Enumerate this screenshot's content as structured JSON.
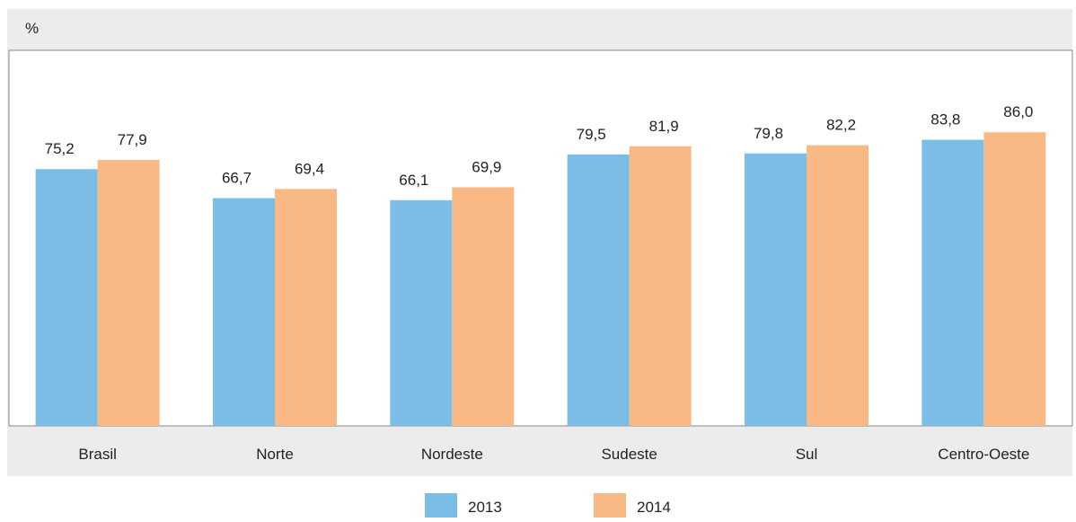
{
  "chart_data": {
    "type": "bar",
    "unit_label": "%",
    "categories": [
      "Brasil",
      "Norte",
      "Nordeste",
      "Sudeste",
      "Sul",
      "Centro-Oeste"
    ],
    "series": [
      {
        "name": "2013",
        "values": [
          75.2,
          66.7,
          66.1,
          79.5,
          79.8,
          83.8
        ],
        "labels": [
          "75,2",
          "66,7",
          "66,1",
          "79,5",
          "79,8",
          "83,8"
        ]
      },
      {
        "name": "2014",
        "values": [
          77.9,
          69.4,
          69.9,
          81.9,
          82.2,
          86.0
        ],
        "labels": [
          "77,9",
          "69,4",
          "69,9",
          "81,9",
          "82,2",
          "86,0"
        ]
      }
    ],
    "ylim": [
      0,
      100
    ],
    "grid": false,
    "legend_position": "bottom-center"
  },
  "colors": {
    "series_2013": "#7bbde6",
    "series_2014": "#f8b985",
    "panel_background": "#ececec",
    "plot_background": "#ffffff",
    "plot_border": "#8a8a8a",
    "text": "#222222"
  }
}
